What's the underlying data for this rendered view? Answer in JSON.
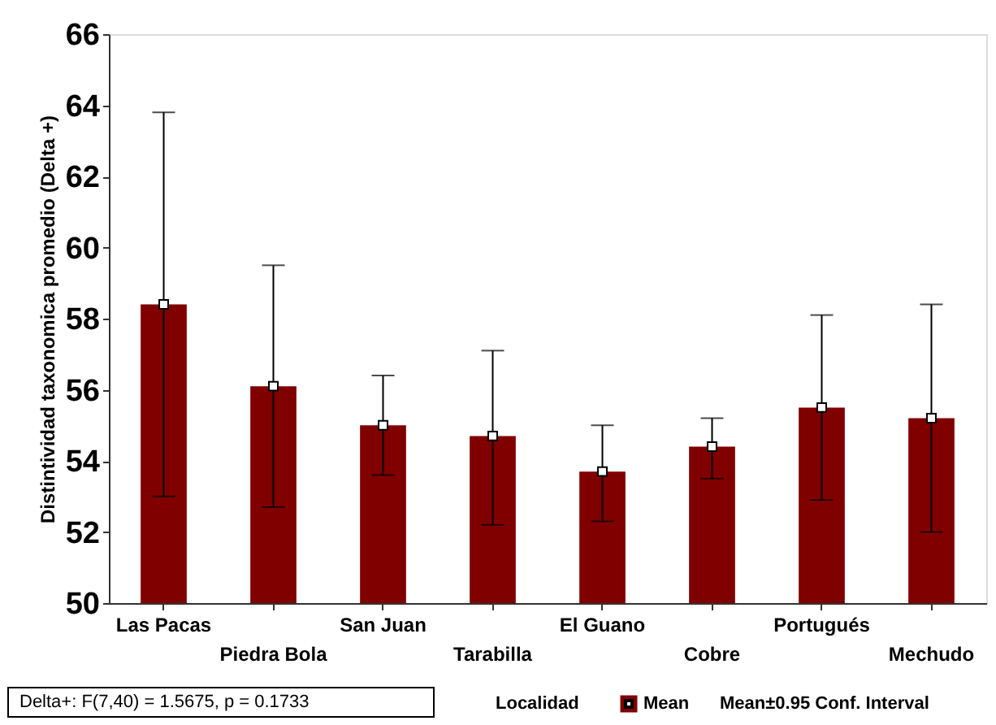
{
  "chart_data": {
    "type": "bar",
    "ylabel": "Distintividad taxonomica promedio (Delta +)",
    "categories": [
      "Las Pacas",
      "Piedra Bola",
      "San Juan",
      "Tarabilla",
      "El Guano",
      "Cobre",
      "Portugués",
      "Mechudo"
    ],
    "series": [
      {
        "name": "Mean",
        "color": "#800000",
        "values": [
          58.4,
          56.1,
          55.0,
          54.7,
          53.7,
          54.4,
          55.5,
          55.2
        ],
        "errors": [
          [
            53.0,
            63.8
          ],
          [
            52.7,
            59.5
          ],
          [
            53.6,
            56.4
          ],
          [
            52.2,
            57.1
          ],
          [
            52.3,
            55.0
          ],
          [
            53.5,
            55.2
          ],
          [
            52.9,
            58.1
          ],
          [
            52.0,
            58.4
          ]
        ]
      },
      {
        "type": "scatter",
        "color": "#ffffff",
        "marker": "square",
        "x": [
          "Las Pacas",
          "Piedra Bola",
          "San Juan",
          "Tarabilla",
          "El Guano",
          "Cobre",
          "Portugués",
          "Mechudo"
        ],
        "values": [
          58.4,
          56.1,
          55.0,
          54.7,
          53.7,
          54.4,
          55.5,
          55.2
        ]
      }
    ],
    "ylim": [
      50,
      66
    ],
    "yticks": [
      50,
      52,
      54,
      56,
      58,
      60,
      62,
      64,
      66
    ],
    "grid": false,
    "legend": "bottom",
    "legend_title": "Localidad",
    "annotations": [
      "Delta+:   F(7,40) = 1.5675, p = 0.1733",
      "Mean±0.95 Conf. Interval"
    ]
  }
}
